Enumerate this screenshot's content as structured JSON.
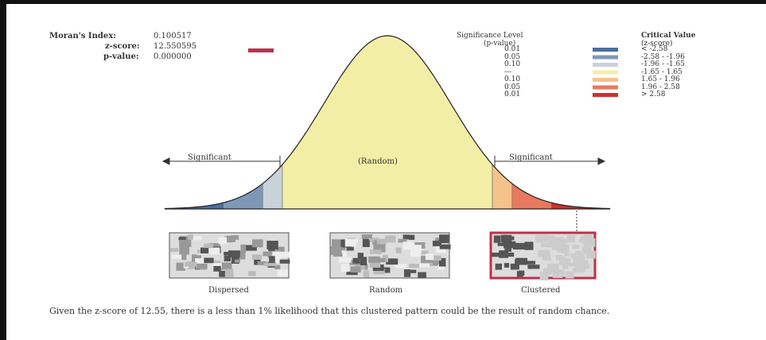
{
  "stats": {
    "morans_label": "Moran's Index:",
    "morans_value": "0.100517",
    "z_label": "z-score:",
    "z_value": "12.550595",
    "p_label": "p-value:",
    "p_value": "0.000000"
  },
  "legend": {
    "sig_header": "Significance Level",
    "sig_sub": "(p-value)",
    "crit_header": "Critical Value",
    "crit_sub": "(z-score)",
    "rows": [
      {
        "p": "0.01",
        "z": "< -2.58",
        "color": "#4a6fa0"
      },
      {
        "p": "0.05",
        "z": "-2.58 - -1.96",
        "color": "#7e98b8"
      },
      {
        "p": "0.10",
        "z": "-1.96 - -1.65",
        "color": "#c9d1db"
      },
      {
        "p": "---",
        "z": "-1.65 - 1.65",
        "color": "#f3eea6"
      },
      {
        "p": "0.10",
        "z": "1.65 - 1.96",
        "color": "#f6c28c"
      },
      {
        "p": "0.05",
        "z": "1.96 - 2.58",
        "color": "#e8795e"
      },
      {
        "p": "0.01",
        "z": "> 2.58",
        "color": "#d03030"
      }
    ]
  },
  "curve": {
    "left_label": "Significant",
    "center_label": "(Random)",
    "right_label": "Significant"
  },
  "patterns": {
    "dispersed": "Dispersed",
    "random": "Random",
    "clustered": "Clustered"
  },
  "caption": "Given the z-score of 12.55, there is a less than 1% likelihood that this clustered pattern could be the result of random chance."
}
